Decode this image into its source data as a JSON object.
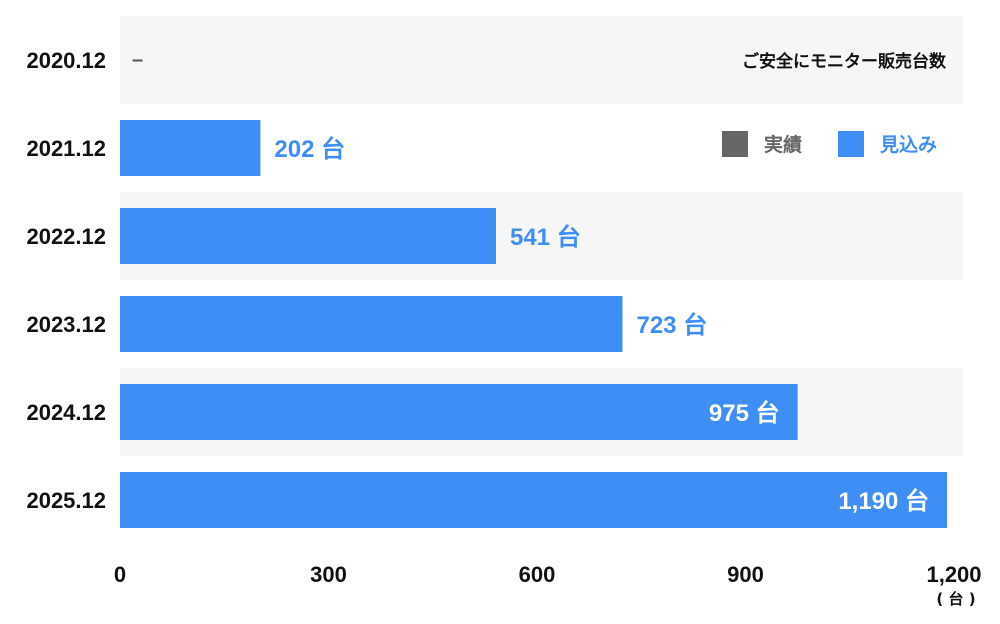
{
  "chart_data": {
    "type": "bar",
    "orientation": "horizontal",
    "title": "ご安全にモニター販売台数",
    "categories": [
      "2020.12",
      "2021.12",
      "2022.12",
      "2023.12",
      "2024.12",
      "2025.12"
    ],
    "series": [
      {
        "name": "実績",
        "color": "#666666",
        "values": [
          null,
          null,
          null,
          null,
          null,
          null
        ]
      },
      {
        "name": "見込み",
        "color": "#3f8ef5",
        "values": [
          null,
          202,
          541,
          723,
          975,
          1190
        ]
      }
    ],
    "value_labels": [
      "–",
      "202 台",
      "541 台",
      "723 台",
      "975 台",
      "1,190 台"
    ],
    "xlim": [
      0,
      1200
    ],
    "xticks": [
      0,
      300,
      600,
      900,
      1200
    ],
    "xtick_labels": [
      "0",
      "300",
      "600",
      "900",
      "1,200"
    ],
    "x_unit": "( 台 )",
    "legend_position": "top-right",
    "grid": false
  },
  "colors": {
    "bar": "#3f8ef5",
    "row_band": "#f6f6f6",
    "label_outside": "#3f8ef5",
    "label_inside": "#ffffff"
  }
}
